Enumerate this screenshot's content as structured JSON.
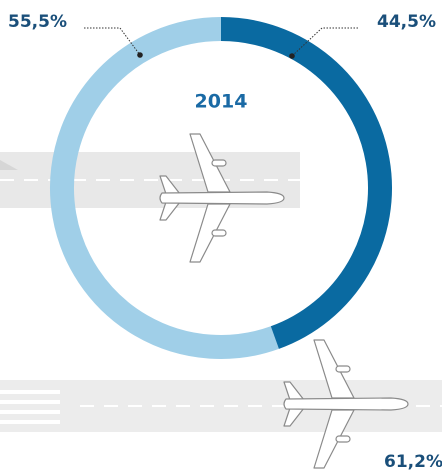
{
  "chart_data": {
    "type": "donut",
    "title": "2014",
    "values": [
      55.5,
      44.5
    ],
    "value_labels": [
      "55,5%",
      "44,5%"
    ],
    "colors": [
      "#a0cfe8",
      "#0a6aa1"
    ],
    "annotations": [
      "61,2%"
    ]
  }
}
